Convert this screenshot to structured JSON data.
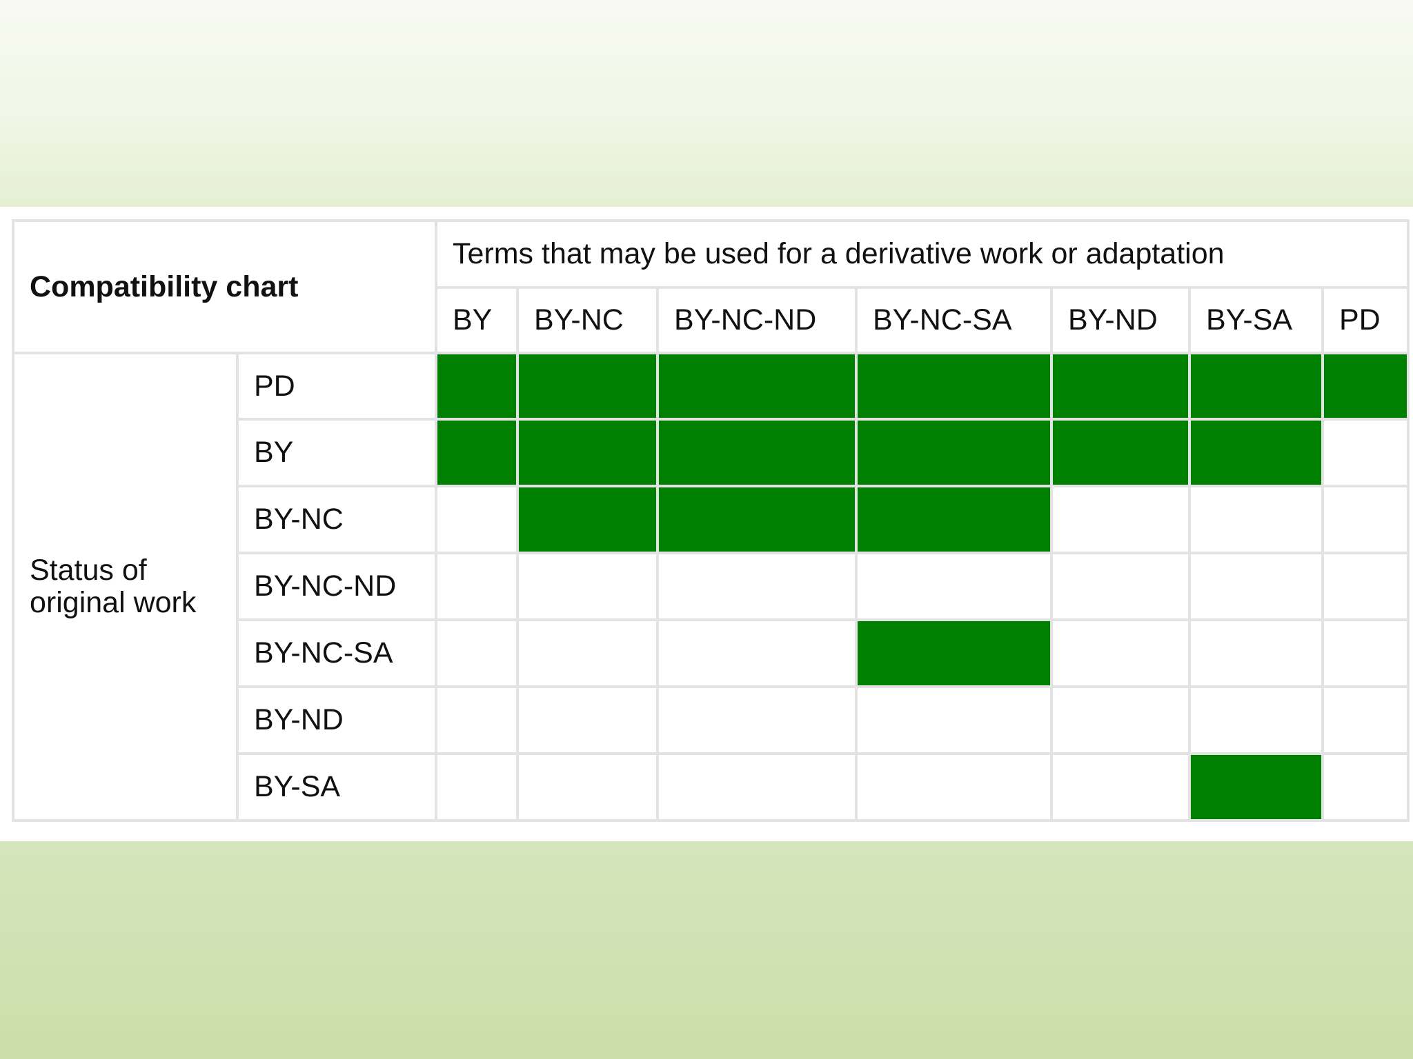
{
  "chart": {
    "corner_label": "Compatibility chart",
    "terms_header": "Terms that may be used for a derivative work or adaptation",
    "row_group_label_line1": "Status of",
    "row_group_label_line2": "original work",
    "columns": [
      "BY",
      "BY-NC",
      "BY-NC-ND",
      "BY-NC-SA",
      "BY-ND",
      "BY-SA",
      "PD"
    ],
    "rows": [
      "PD",
      "BY",
      "BY-NC",
      "BY-NC-ND",
      "BY-NC-SA",
      "BY-ND",
      "BY-SA"
    ],
    "compatible_color": "#008000",
    "empty_color": "#ffffff"
  },
  "chart_data": {
    "type": "table",
    "title": "Compatibility chart",
    "column_header": "Terms that may be used for a derivative work or adaptation",
    "row_header": "Status of original work",
    "columns": [
      "BY",
      "BY-NC",
      "BY-NC-ND",
      "BY-NC-SA",
      "BY-ND",
      "BY-SA",
      "PD"
    ],
    "rows": [
      "PD",
      "BY",
      "BY-NC",
      "BY-NC-ND",
      "BY-NC-SA",
      "BY-ND",
      "BY-SA"
    ],
    "matrix": [
      [
        1,
        1,
        1,
        1,
        1,
        1,
        1
      ],
      [
        1,
        1,
        1,
        1,
        1,
        1,
        0
      ],
      [
        0,
        1,
        1,
        1,
        0,
        0,
        0
      ],
      [
        0,
        0,
        0,
        0,
        0,
        0,
        0
      ],
      [
        0,
        0,
        0,
        1,
        0,
        0,
        0
      ],
      [
        0,
        0,
        0,
        0,
        0,
        0,
        0
      ],
      [
        0,
        0,
        0,
        0,
        0,
        1,
        0
      ]
    ]
  }
}
